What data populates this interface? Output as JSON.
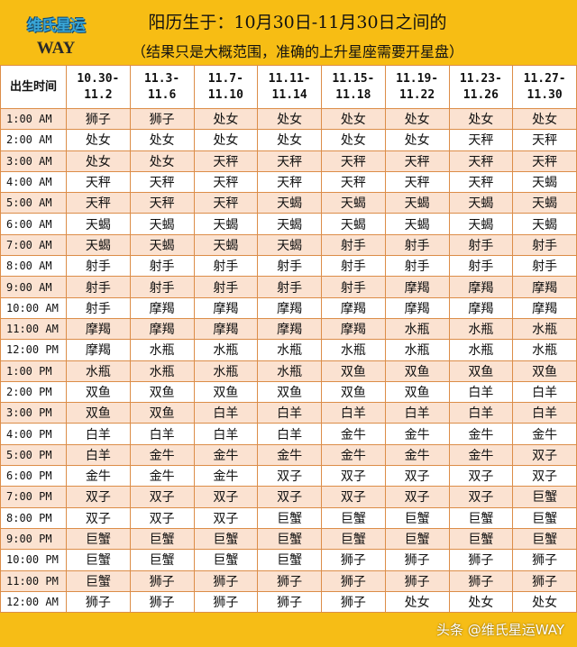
{
  "header": {
    "logo_cn": "维氏星运",
    "logo_en": "WAY",
    "title": "阳历生于：10月30日-11月30日之间的",
    "subtitle": "（结果只是大概范围，准确的上升星座需要开星盘）"
  },
  "table": {
    "first_header": "出生时间",
    "columns": [
      [
        "10.30-",
        "11.2"
      ],
      [
        "11.3-",
        "11.6"
      ],
      [
        "11.7-",
        "11.10"
      ],
      [
        "11.11-",
        "11.14"
      ],
      [
        "11.15-",
        "11.18"
      ],
      [
        "11.19-",
        "11.22"
      ],
      [
        "11.23-",
        "11.26"
      ],
      [
        "11.27-",
        "11.30"
      ]
    ],
    "rows": [
      {
        "time": "1:00 AM",
        "signs": [
          "狮子",
          "狮子",
          "处女",
          "处女",
          "处女",
          "处女",
          "处女",
          "处女"
        ]
      },
      {
        "time": "2:00 AM",
        "signs": [
          "处女",
          "处女",
          "处女",
          "处女",
          "处女",
          "处女",
          "天秤",
          "天秤"
        ]
      },
      {
        "time": "3:00 AM",
        "signs": [
          "处女",
          "处女",
          "天秤",
          "天秤",
          "天秤",
          "天秤",
          "天秤",
          "天秤"
        ]
      },
      {
        "time": "4:00 AM",
        "signs": [
          "天秤",
          "天秤",
          "天秤",
          "天秤",
          "天秤",
          "天秤",
          "天秤",
          "天蝎"
        ]
      },
      {
        "time": "5:00 AM",
        "signs": [
          "天秤",
          "天秤",
          "天秤",
          "天蝎",
          "天蝎",
          "天蝎",
          "天蝎",
          "天蝎"
        ]
      },
      {
        "time": "6:00 AM",
        "signs": [
          "天蝎",
          "天蝎",
          "天蝎",
          "天蝎",
          "天蝎",
          "天蝎",
          "天蝎",
          "天蝎"
        ]
      },
      {
        "time": "7:00 AM",
        "signs": [
          "天蝎",
          "天蝎",
          "天蝎",
          "天蝎",
          "射手",
          "射手",
          "射手",
          "射手"
        ]
      },
      {
        "time": "8:00 AM",
        "signs": [
          "射手",
          "射手",
          "射手",
          "射手",
          "射手",
          "射手",
          "射手",
          "射手"
        ]
      },
      {
        "time": "9:00 AM",
        "signs": [
          "射手",
          "射手",
          "射手",
          "射手",
          "射手",
          "摩羯",
          "摩羯",
          "摩羯"
        ]
      },
      {
        "time": "10:00 AM",
        "signs": [
          "射手",
          "摩羯",
          "摩羯",
          "摩羯",
          "摩羯",
          "摩羯",
          "摩羯",
          "摩羯"
        ]
      },
      {
        "time": "11:00 AM",
        "signs": [
          "摩羯",
          "摩羯",
          "摩羯",
          "摩羯",
          "摩羯",
          "水瓶",
          "水瓶",
          "水瓶"
        ]
      },
      {
        "time": "12:00 PM",
        "signs": [
          "摩羯",
          "水瓶",
          "水瓶",
          "水瓶",
          "水瓶",
          "水瓶",
          "水瓶",
          "水瓶"
        ]
      },
      {
        "time": "1:00 PM",
        "signs": [
          "水瓶",
          "水瓶",
          "水瓶",
          "水瓶",
          "双鱼",
          "双鱼",
          "双鱼",
          "双鱼"
        ]
      },
      {
        "time": "2:00 PM",
        "signs": [
          "双鱼",
          "双鱼",
          "双鱼",
          "双鱼",
          "双鱼",
          "双鱼",
          "白羊",
          "白羊"
        ]
      },
      {
        "time": "3:00 PM",
        "signs": [
          "双鱼",
          "双鱼",
          "白羊",
          "白羊",
          "白羊",
          "白羊",
          "白羊",
          "白羊"
        ]
      },
      {
        "time": "4:00 PM",
        "signs": [
          "白羊",
          "白羊",
          "白羊",
          "白羊",
          "金牛",
          "金牛",
          "金牛",
          "金牛"
        ]
      },
      {
        "time": "5:00 PM",
        "signs": [
          "白羊",
          "金牛",
          "金牛",
          "金牛",
          "金牛",
          "金牛",
          "金牛",
          "双子"
        ]
      },
      {
        "time": "6:00 PM",
        "signs": [
          "金牛",
          "金牛",
          "金牛",
          "双子",
          "双子",
          "双子",
          "双子",
          "双子"
        ]
      },
      {
        "time": "7:00 PM",
        "signs": [
          "双子",
          "双子",
          "双子",
          "双子",
          "双子",
          "双子",
          "双子",
          "巨蟹"
        ]
      },
      {
        "time": "8:00 PM",
        "signs": [
          "双子",
          "双子",
          "双子",
          "巨蟹",
          "巨蟹",
          "巨蟹",
          "巨蟹",
          "巨蟹"
        ]
      },
      {
        "time": "9:00 PM",
        "signs": [
          "巨蟹",
          "巨蟹",
          "巨蟹",
          "巨蟹",
          "巨蟹",
          "巨蟹",
          "巨蟹",
          "巨蟹"
        ]
      },
      {
        "time": "10:00 PM",
        "signs": [
          "巨蟹",
          "巨蟹",
          "巨蟹",
          "巨蟹",
          "狮子",
          "狮子",
          "狮子",
          "狮子"
        ]
      },
      {
        "time": "11:00 PM",
        "signs": [
          "巨蟹",
          "狮子",
          "狮子",
          "狮子",
          "狮子",
          "狮子",
          "狮子",
          "狮子"
        ]
      },
      {
        "time": "12:00 AM",
        "signs": [
          "狮子",
          "狮子",
          "狮子",
          "狮子",
          "狮子",
          "处女",
          "处女",
          "处女"
        ]
      }
    ]
  },
  "footer": {
    "credit": "头条 @维氏星运WAY"
  },
  "colors": {
    "banner": "#f7bd14",
    "row_alt": "#fbe2d1",
    "border": "#dc8d48"
  }
}
